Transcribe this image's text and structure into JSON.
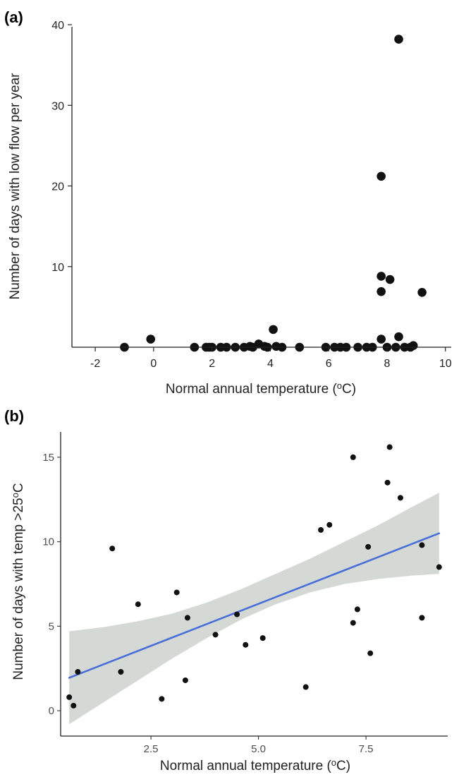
{
  "chart_data": [
    {
      "panel": "(a)",
      "type": "scatter",
      "title": "",
      "xlabel": "Normal annual temperature (°C)",
      "xlabel_main": "Normal annual temperature (",
      "xlabel_unit_sup": "o",
      "xlabel_unit_tail": "C)",
      "ylabel": "Number of days with low flow per year",
      "xlim": [
        -2.8,
        10.2
      ],
      "ylim": [
        0,
        40
      ],
      "xticks": [
        -2,
        0,
        2,
        4,
        6,
        8,
        10
      ],
      "yticks": [
        10,
        20,
        30,
        40
      ],
      "grid": false,
      "marker_color": "#111111",
      "points": [
        {
          "x": -1.0,
          "y": 0
        },
        {
          "x": -0.1,
          "y": 1.0
        },
        {
          "x": 1.4,
          "y": 0
        },
        {
          "x": 1.8,
          "y": 0
        },
        {
          "x": 1.9,
          "y": 0
        },
        {
          "x": 2.0,
          "y": 0
        },
        {
          "x": 2.3,
          "y": 0
        },
        {
          "x": 2.5,
          "y": 0
        },
        {
          "x": 2.8,
          "y": 0
        },
        {
          "x": 3.1,
          "y": 0
        },
        {
          "x": 3.3,
          "y": 0.1
        },
        {
          "x": 3.4,
          "y": 0
        },
        {
          "x": 3.6,
          "y": 0.4
        },
        {
          "x": 3.8,
          "y": 0.1
        },
        {
          "x": 3.9,
          "y": 0
        },
        {
          "x": 4.1,
          "y": 2.2
        },
        {
          "x": 4.2,
          "y": 0.1
        },
        {
          "x": 4.4,
          "y": 0
        },
        {
          "x": 5.0,
          "y": 0
        },
        {
          "x": 5.9,
          "y": 0
        },
        {
          "x": 6.2,
          "y": 0
        },
        {
          "x": 6.4,
          "y": 0
        },
        {
          "x": 6.6,
          "y": 0
        },
        {
          "x": 7.0,
          "y": 0
        },
        {
          "x": 7.3,
          "y": 0
        },
        {
          "x": 7.5,
          "y": 0
        },
        {
          "x": 7.8,
          "y": 1.0
        },
        {
          "x": 7.8,
          "y": 6.9
        },
        {
          "x": 7.8,
          "y": 8.8
        },
        {
          "x": 7.8,
          "y": 21.2
        },
        {
          "x": 8.0,
          "y": 0
        },
        {
          "x": 8.1,
          "y": 8.4
        },
        {
          "x": 8.3,
          "y": 0
        },
        {
          "x": 8.4,
          "y": 1.3
        },
        {
          "x": 8.4,
          "y": 38.2
        },
        {
          "x": 8.6,
          "y": 0
        },
        {
          "x": 8.8,
          "y": 0
        },
        {
          "x": 8.9,
          "y": 0.2
        },
        {
          "x": 9.2,
          "y": 6.8
        }
      ]
    },
    {
      "panel": "(b)",
      "type": "scatter",
      "title": "",
      "xlabel": "Normal annual temperature (°C)",
      "xlabel_main": "Normal annual temperature (",
      "xlabel_unit_sup": "o",
      "xlabel_unit_tail": "C)",
      "ylabel": "Number of days with temp >25°C",
      "ylabel_main": "Number of days with temp >25",
      "ylabel_unit_sup": "o",
      "ylabel_unit_tail": "C",
      "xlim": [
        0.4,
        9.4
      ],
      "ylim": [
        -1.5,
        16.5
      ],
      "xticks": [
        2.5,
        5.0,
        7.5
      ],
      "xtick_labels": [
        "2.5",
        "5.0",
        "7.5"
      ],
      "yticks": [
        0,
        5,
        10,
        15
      ],
      "grid": false,
      "marker_color": "#111111",
      "trend_color": "#4a6fd8",
      "band_color": "#d5d9d6",
      "trend": {
        "x0": 0.6,
        "y0": 1.95,
        "x1": 9.2,
        "y1": 10.5
      },
      "band": {
        "x": [
          0.6,
          1.4,
          2.2,
          3.0,
          3.8,
          4.6,
          5.4,
          6.2,
          7.0,
          7.8,
          8.6,
          9.2
        ],
        "lower": [
          -0.8,
          0.5,
          1.8,
          3.1,
          4.3,
          5.4,
          6.3,
          7.0,
          7.5,
          7.8,
          8.0,
          8.1
        ],
        "upper": [
          4.7,
          4.95,
          5.3,
          5.75,
          6.4,
          7.2,
          8.1,
          9.0,
          10.0,
          11.0,
          12.1,
          12.9
        ]
      },
      "points": [
        {
          "x": 0.6,
          "y": 0.8
        },
        {
          "x": 0.7,
          "y": 0.3
        },
        {
          "x": 0.8,
          "y": 2.3
        },
        {
          "x": 1.6,
          "y": 9.6
        },
        {
          "x": 1.8,
          "y": 2.3
        },
        {
          "x": 2.2,
          "y": 6.3
        },
        {
          "x": 2.75,
          "y": 0.7
        },
        {
          "x": 3.1,
          "y": 7.0
        },
        {
          "x": 3.3,
          "y": 1.8
        },
        {
          "x": 3.35,
          "y": 5.5
        },
        {
          "x": 4.0,
          "y": 4.5
        },
        {
          "x": 4.5,
          "y": 5.7
        },
        {
          "x": 4.7,
          "y": 3.9
        },
        {
          "x": 5.1,
          "y": 4.3
        },
        {
          "x": 6.1,
          "y": 1.4
        },
        {
          "x": 6.45,
          "y": 10.7
        },
        {
          "x": 6.65,
          "y": 11.0
        },
        {
          "x": 7.2,
          "y": 15.0
        },
        {
          "x": 7.2,
          "y": 5.2
        },
        {
          "x": 7.3,
          "y": 6.0
        },
        {
          "x": 7.55,
          "y": 9.7
        },
        {
          "x": 7.6,
          "y": 3.4
        },
        {
          "x": 8.0,
          "y": 13.5
        },
        {
          "x": 8.05,
          "y": 15.6
        },
        {
          "x": 8.3,
          "y": 12.6
        },
        {
          "x": 8.8,
          "y": 9.8
        },
        {
          "x": 8.8,
          "y": 5.5
        },
        {
          "x": 9.2,
          "y": 8.5
        }
      ]
    }
  ]
}
